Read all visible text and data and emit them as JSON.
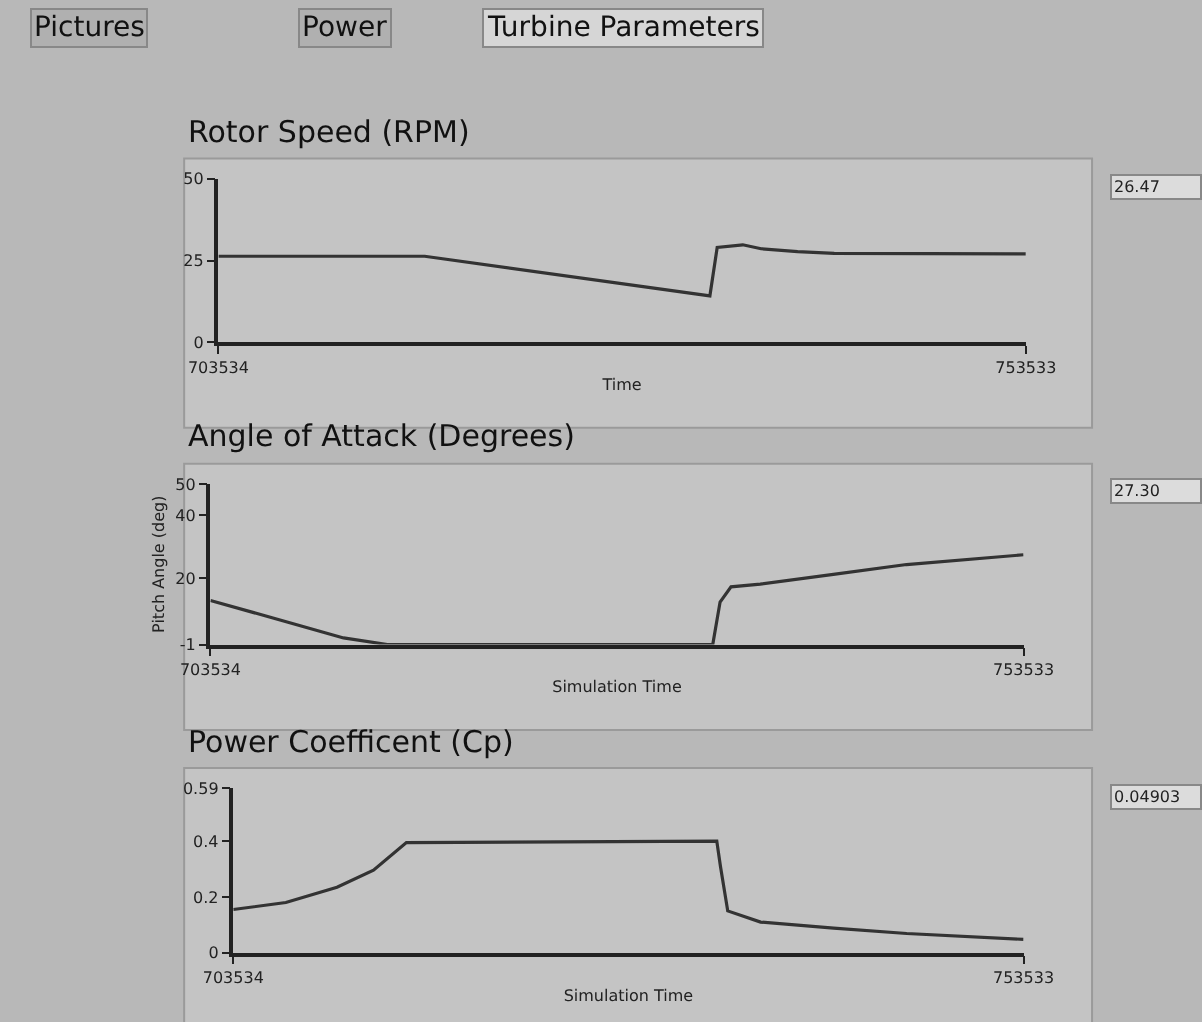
{
  "chart_data": [
    {
      "type": "line",
      "title": "Rotor Speed (RPM)",
      "xlabel": "Time",
      "x": [
        703534,
        716306,
        733968,
        734421,
        736005,
        737142,
        739402,
        741667,
        753533
      ],
      "series": [
        {
          "color": "#333333",
          "values": [
            26.3,
            26.3,
            14.2,
            29.0,
            29.8,
            28.6,
            27.7,
            27.2,
            27.0
          ]
        }
      ],
      "xlim": [
        703534,
        753533
      ],
      "xticks": [
        703534,
        753533
      ],
      "ylim": [
        0,
        50
      ],
      "yticks": [
        0,
        25,
        50
      ],
      "grid": false,
      "marker": "none",
      "line_style": "solid",
      "annotations": [
        "Pictures",
        "Power",
        "Turbine Parameters",
        "26.47"
      ]
    },
    {
      "type": "line",
      "title": "Angle of Attack (Degrees)",
      "xlabel": "Simulation Time",
      "ylabel": "Pitch Angle (deg)",
      "x": [
        703534,
        711717,
        714414,
        734422,
        734872,
        735546,
        737344,
        741840,
        746336,
        753533
      ],
      "series": [
        {
          "color": "#333333",
          "values": [
            13.0,
            1.1,
            -1,
            -1,
            12.5,
            17.3,
            18.2,
            21.3,
            24.4,
            27.5
          ]
        }
      ],
      "xlim": [
        703534,
        753533
      ],
      "xticks": [
        703534,
        753533
      ],
      "ylim": [
        -1,
        50
      ],
      "yticks": [
        -1,
        20,
        40,
        50
      ],
      "grid": false,
      "marker": "none",
      "line_style": "solid",
      "annotations": [
        "27.30"
      ]
    },
    {
      "type": "line",
      "title": "Power Coefficent (Cp)",
      "xlabel": "Simulation Time",
      "x": [
        703534,
        706861,
        710096,
        712406,
        714486,
        734125,
        734356,
        734818,
        736898,
        741519,
        746140,
        753533
      ],
      "series": [
        {
          "color": "#333333",
          "values": [
            0.155,
            0.18,
            0.235,
            0.296,
            0.395,
            0.4,
            0.31,
            0.15,
            0.11,
            0.088,
            0.069,
            0.048
          ]
        }
      ],
      "xlim": [
        703534,
        753533
      ],
      "xticks": [
        703534,
        753533
      ],
      "ylim": [
        0,
        0.59
      ],
      "yticks": [
        0,
        0.2,
        0.4,
        0.59
      ],
      "grid": false,
      "marker": "none",
      "line_style": "solid",
      "annotations": [
        "0.04903"
      ]
    }
  ]
}
